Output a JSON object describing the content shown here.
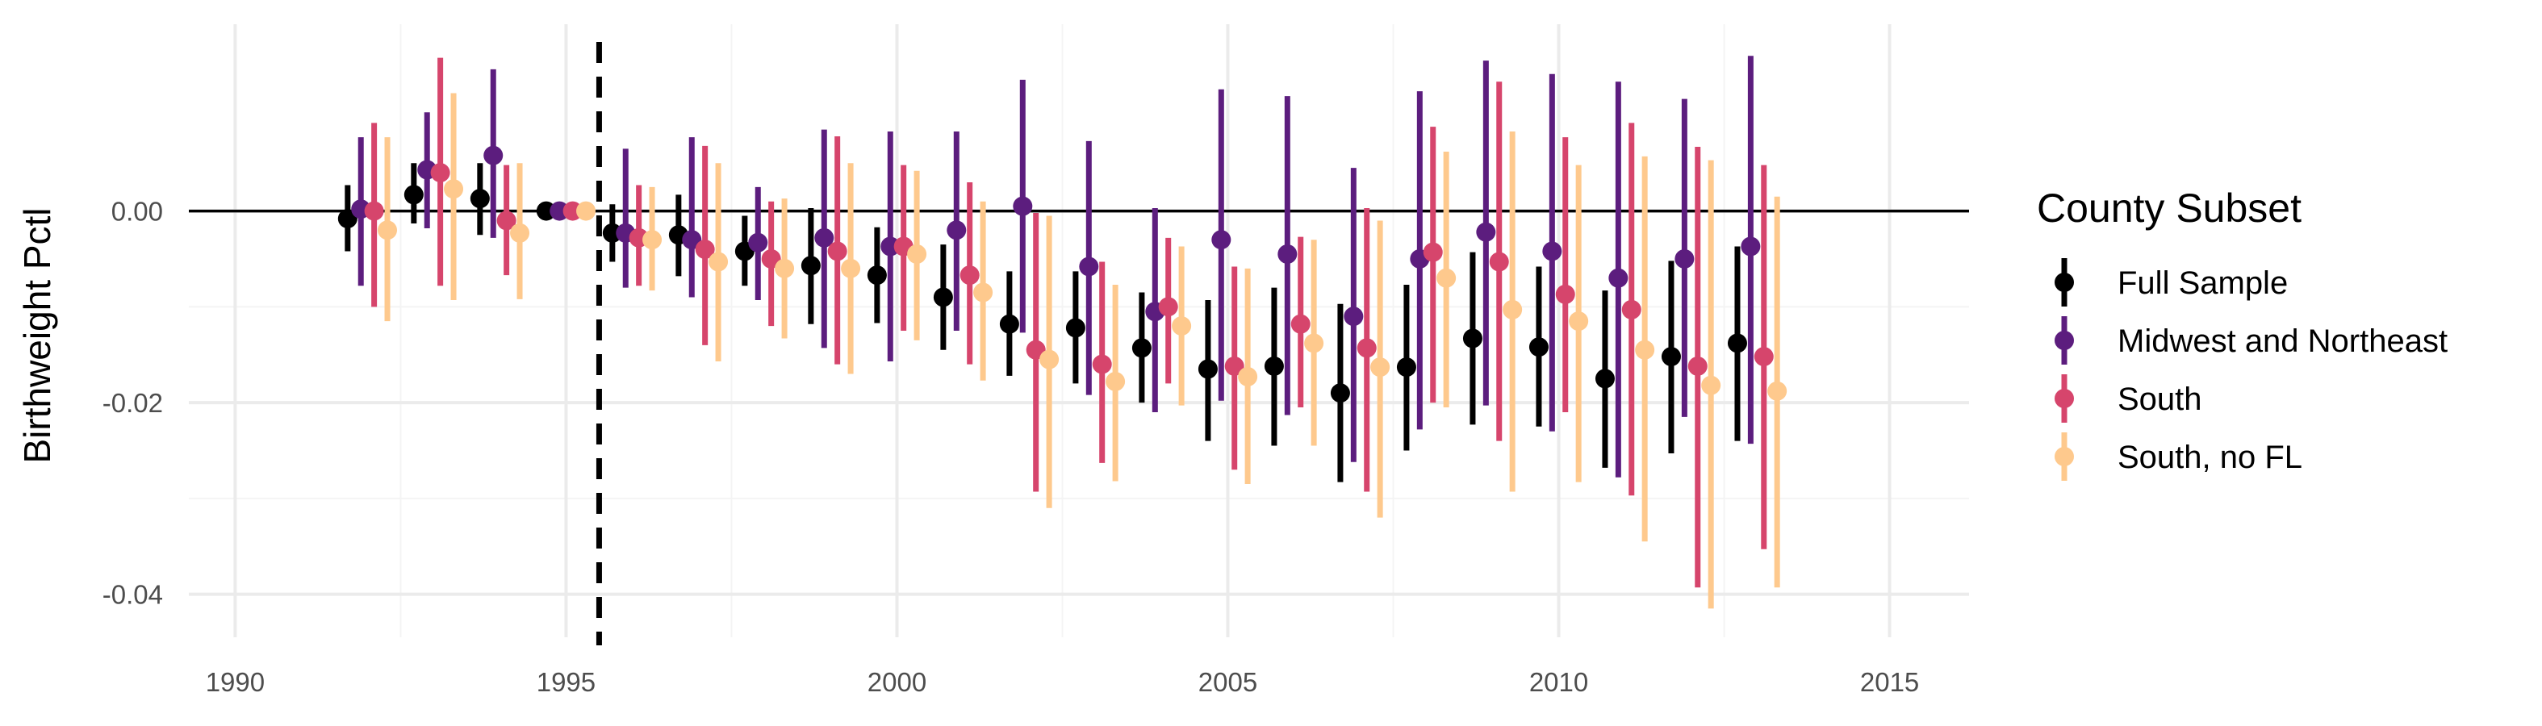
{
  "chart_data": {
    "type": "scatter",
    "subtype": "event-study point estimates with vertical confidence-interval bars, series dodged horizontally",
    "title": "",
    "xlabel": "",
    "ylabel": "Birthweight Pctl",
    "xlim": [
      1989.3,
      2016.2
    ],
    "ylim": [
      -0.0445,
      0.0195
    ],
    "x_ticks": [
      1990,
      1995,
      2000,
      2005,
      2010,
      2015
    ],
    "y_ticks": [
      0.0,
      -0.02,
      -0.04
    ],
    "y_tick_labels": [
      "0.00",
      "-0.02",
      "-0.04"
    ],
    "grid": true,
    "hline": 0.0,
    "vline": {
      "x": 1995.5,
      "style": "dashed"
    },
    "legend": {
      "title": "County Subset",
      "position": "right"
    },
    "x": [
      1992,
      1993,
      1994,
      1995,
      1996,
      1997,
      1998,
      1999,
      2000,
      2001,
      2002,
      2003,
      2004,
      2005,
      2006,
      2007,
      2008,
      2009,
      2010,
      2011,
      2012,
      2013
    ],
    "series": [
      {
        "name": "Full Sample",
        "color": "#000000",
        "estimate": [
          -0.0008,
          0.0017,
          0.0013,
          0.0,
          -0.0023,
          -0.0025,
          -0.0042,
          -0.0057,
          -0.0067,
          -0.009,
          -0.0118,
          -0.0122,
          -0.0143,
          -0.0165,
          -0.0162,
          -0.019,
          -0.0163,
          -0.0133,
          -0.0142,
          -0.0175,
          -0.0152,
          -0.0138
        ],
        "lower": [
          -0.0042,
          -0.0013,
          -0.0025,
          0.0,
          -0.0053,
          -0.0068,
          -0.0078,
          -0.0118,
          -0.0117,
          -0.0145,
          -0.0172,
          -0.018,
          -0.02,
          -0.024,
          -0.0245,
          -0.0283,
          -0.025,
          -0.0223,
          -0.0225,
          -0.0268,
          -0.0253,
          -0.024
        ],
        "upper": [
          0.0027,
          0.005,
          0.005,
          0.0,
          0.0007,
          0.0017,
          -0.0005,
          0.0003,
          -0.0017,
          -0.0035,
          -0.0063,
          -0.0063,
          -0.0085,
          -0.0093,
          -0.008,
          -0.0097,
          -0.0077,
          -0.0043,
          -0.0058,
          -0.0083,
          -0.0052,
          -0.0037
        ]
      },
      {
        "name": "Midwest and Northeast",
        "color": "#5c1d7e",
        "estimate": [
          0.0002,
          0.0043,
          0.0058,
          0.0,
          -0.0023,
          -0.003,
          -0.0033,
          -0.0028,
          -0.0037,
          -0.002,
          0.0005,
          -0.0058,
          -0.0105,
          -0.003,
          -0.0045,
          -0.011,
          -0.005,
          -0.0022,
          -0.0042,
          -0.007,
          -0.005,
          -0.0037
        ],
        "lower": [
          -0.0078,
          -0.0018,
          -0.0028,
          0.0,
          -0.008,
          -0.009,
          -0.0093,
          -0.0143,
          -0.0157,
          -0.0125,
          -0.0127,
          -0.0192,
          -0.021,
          -0.0198,
          -0.0213,
          -0.0262,
          -0.0228,
          -0.0203,
          -0.023,
          -0.0278,
          -0.0215,
          -0.0243
        ],
        "upper": [
          0.0077,
          0.0103,
          0.0148,
          0.0,
          0.0065,
          0.0077,
          0.0025,
          0.0085,
          0.0083,
          0.0083,
          0.0137,
          0.0073,
          0.0003,
          0.0127,
          0.012,
          0.0045,
          0.0125,
          0.0157,
          0.0143,
          0.0135,
          0.0117,
          0.0162
        ]
      },
      {
        "name": "South",
        "color": "#d6456c",
        "estimate": [
          0.0,
          0.004,
          -0.001,
          0.0,
          -0.0028,
          -0.004,
          -0.005,
          -0.0042,
          -0.0037,
          -0.0067,
          -0.0145,
          -0.016,
          -0.01,
          -0.0162,
          -0.0118,
          -0.0143,
          -0.0043,
          -0.0053,
          -0.0087,
          -0.0103,
          -0.0162,
          -0.0152
        ],
        "lower": [
          -0.01,
          -0.0078,
          -0.0067,
          0.0,
          -0.0078,
          -0.014,
          -0.012,
          -0.016,
          -0.0125,
          -0.016,
          -0.0293,
          -0.0263,
          -0.018,
          -0.027,
          -0.0205,
          -0.0293,
          -0.02,
          -0.024,
          -0.021,
          -0.0297,
          -0.0393,
          -0.0353
        ],
        "upper": [
          0.0092,
          0.016,
          0.0048,
          0.0,
          0.0027,
          0.0068,
          0.001,
          0.0078,
          0.0048,
          0.003,
          -0.0002,
          -0.0053,
          -0.0028,
          -0.0058,
          -0.0027,
          0.0003,
          0.0088,
          0.0135,
          0.0077,
          0.0092,
          0.0067,
          0.0048
        ]
      },
      {
        "name": "South, no FL",
        "color": "#fec98d",
        "estimate": [
          -0.002,
          0.0023,
          -0.0023,
          0.0,
          -0.003,
          -0.0053,
          -0.006,
          -0.006,
          -0.0045,
          -0.0085,
          -0.0155,
          -0.0178,
          -0.012,
          -0.0173,
          -0.0138,
          -0.0163,
          -0.007,
          -0.0103,
          -0.0115,
          -0.0145,
          -0.0182,
          -0.0188
        ],
        "lower": [
          -0.0115,
          -0.0093,
          -0.0092,
          0.0,
          -0.0083,
          -0.0157,
          -0.0133,
          -0.017,
          -0.0135,
          -0.0177,
          -0.031,
          -0.0282,
          -0.0203,
          -0.0285,
          -0.0245,
          -0.032,
          -0.0205,
          -0.0293,
          -0.0283,
          -0.0345,
          -0.0415,
          -0.0393
        ],
        "upper": [
          0.0077,
          0.0123,
          0.005,
          0.0,
          0.0025,
          0.005,
          0.0013,
          0.005,
          0.0042,
          0.001,
          -0.0005,
          -0.0077,
          -0.0037,
          -0.006,
          -0.003,
          -0.001,
          0.0062,
          0.0083,
          0.0048,
          0.0057,
          0.0053,
          0.0015
        ]
      }
    ]
  }
}
